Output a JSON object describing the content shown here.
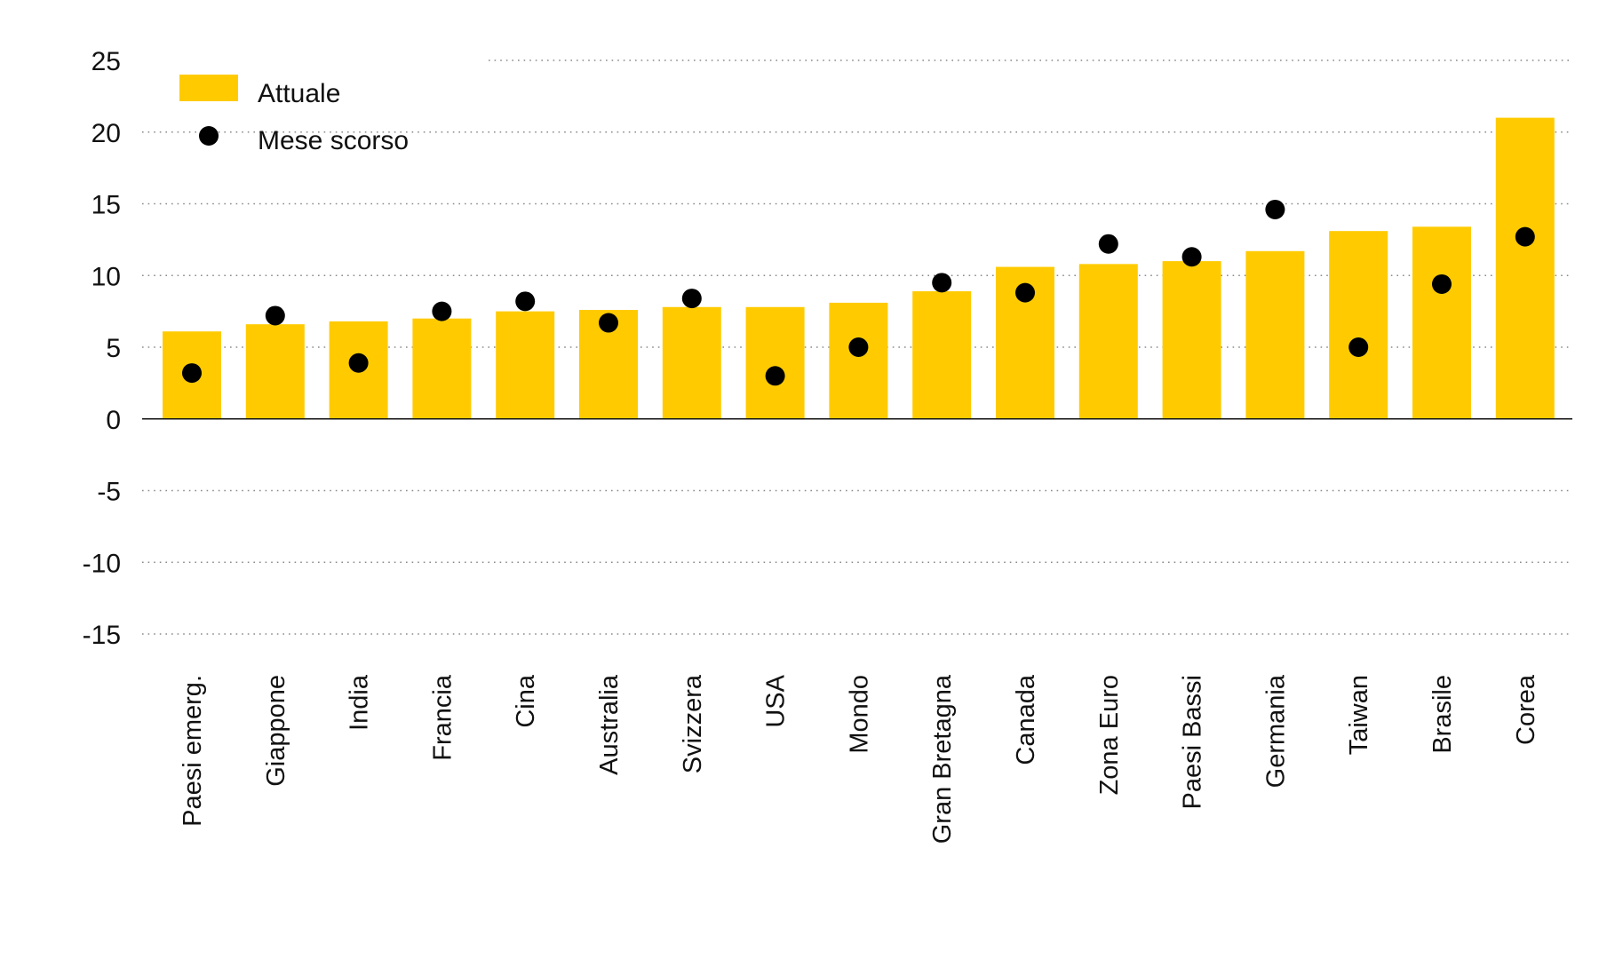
{
  "chart_data": {
    "type": "bar",
    "categories": [
      "Paesi emerg.",
      "Giappone",
      "India",
      "Francia",
      "Cina",
      "Australia",
      "Svizzera",
      "USA",
      "Mondo",
      "Gran Bretagna",
      "Canada",
      "Zona Euro",
      "Paesi Bassi",
      "Germania",
      "Taiwan",
      "Brasile",
      "Corea"
    ],
    "series": [
      {
        "name": "Attuale",
        "kind": "bar",
        "color": "#FFCB00",
        "values": [
          6.1,
          6.6,
          6.8,
          7.0,
          7.5,
          7.6,
          7.8,
          7.8,
          8.1,
          8.9,
          10.6,
          10.8,
          11.0,
          11.7,
          13.1,
          13.4,
          21.0
        ]
      },
      {
        "name": "Mese scorso",
        "kind": "point",
        "color": "#000000",
        "values": [
          3.2,
          7.2,
          3.9,
          7.5,
          8.2,
          6.7,
          8.4,
          3.0,
          5.0,
          9.5,
          8.8,
          12.2,
          11.3,
          14.6,
          5.0,
          9.4,
          12.7
        ]
      }
    ],
    "yticks": [
      25,
      20,
      15,
      10,
      5,
      0,
      -5,
      -10,
      -15
    ],
    "ylim": [
      -15,
      25
    ],
    "title": "",
    "xlabel": "",
    "ylabel": "",
    "grid": true,
    "legend": "top-left"
  }
}
